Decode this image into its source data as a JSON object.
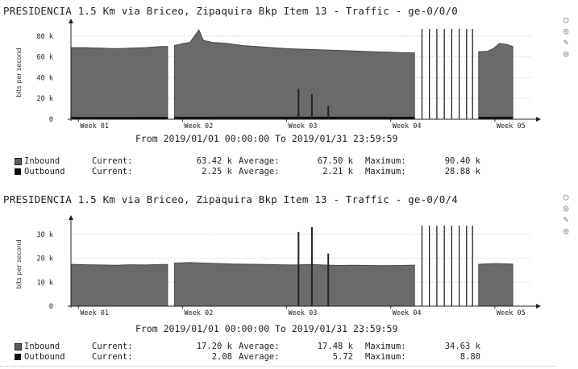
{
  "chart_data": [
    {
      "type": "area",
      "title": "PRESIDENCIA 1.5 Km via Briceo, Zipaquira Bkp Item 13 - Traffic - ge-0/0/0",
      "ylabel": "bits per second",
      "ylim": [
        0,
        90000
      ],
      "yticks": [
        {
          "v": 0,
          "label": "0"
        },
        {
          "v": 20000,
          "label": "20 k"
        },
        {
          "v": 40000,
          "label": "40 k"
        },
        {
          "v": 60000,
          "label": "60 k"
        },
        {
          "v": 80000,
          "label": "80 k"
        }
      ],
      "xticks": [
        "Week 01",
        "Week 02",
        "Week 03",
        "Week 04",
        "Week 05"
      ],
      "xlim": [
        0,
        31
      ],
      "period": "From 2019/01/01 00:00:00 To 2019/01/31 23:59:59",
      "grid": true,
      "series": [
        {
          "name": "Inbound",
          "color": "#6a6a6a",
          "points": [
            [
              0,
              69000
            ],
            [
              1.0,
              69000
            ],
            [
              2.0,
              68500
            ],
            [
              3.0,
              68000
            ],
            [
              4.0,
              68500
            ],
            [
              5.0,
              69000
            ],
            [
              6.0,
              70000
            ],
            [
              6.5,
              70000
            ],
            [
              6.51,
              null
            ],
            [
              6.95,
              null
            ],
            [
              6.96,
              71000
            ],
            [
              7.6,
              73000
            ],
            [
              8.0,
              74000
            ],
            [
              8.3,
              80000
            ],
            [
              8.6,
              86000
            ],
            [
              8.9,
              76000
            ],
            [
              9.5,
              74000
            ],
            [
              10.5,
              73000
            ],
            [
              11.5,
              71000
            ],
            [
              12.5,
              70000
            ],
            [
              13.5,
              69000
            ],
            [
              14.5,
              68000
            ],
            [
              15.5,
              67500
            ],
            [
              16.5,
              67000
            ],
            [
              17.5,
              66500
            ],
            [
              18.5,
              66000
            ],
            [
              19.5,
              65500
            ],
            [
              20.5,
              65000
            ],
            [
              21.5,
              64500
            ],
            [
              22.5,
              64000
            ],
            [
              23.1,
              64000
            ],
            [
              23.11,
              null
            ],
            [
              27.4,
              null
            ],
            [
              27.41,
              65000
            ],
            [
              28.0,
              65500
            ],
            [
              28.4,
              68000
            ],
            [
              28.8,
              73000
            ],
            [
              29.3,
              72000
            ],
            [
              29.7,
              70000
            ]
          ],
          "current": "63.42 k",
          "average": "67.50 k",
          "maximum": "90.40 k"
        },
        {
          "name": "Outbound",
          "color": "#111111",
          "points": [
            [
              0,
              2000
            ],
            [
              6.5,
              2100
            ],
            [
              6.51,
              null
            ],
            [
              6.95,
              null
            ],
            [
              6.96,
              2200
            ],
            [
              16.5,
              2300
            ],
            [
              23.1,
              2200
            ],
            [
              23.11,
              null
            ],
            [
              27.4,
              null
            ],
            [
              27.41,
              2200
            ],
            [
              29.7,
              2250
            ]
          ],
          "current": "2.25 k",
          "average": "2.21 k",
          "maximum": "28.88 k"
        }
      ],
      "spikes": [
        {
          "x": 15.3,
          "v": 29000
        },
        {
          "x": 16.2,
          "v": 24000
        },
        {
          "x": 17.3,
          "v": 13000
        }
      ],
      "gap_lines": [
        23.6,
        24.1,
        24.6,
        25.1,
        25.6,
        26.1,
        26.6,
        27.0
      ],
      "legend": {
        "current_label": "Current:",
        "average_label": "Average:",
        "maximum_label": "Maximum:"
      }
    },
    {
      "type": "area",
      "title": "PRESIDENCIA 1.5 Km via Briceo, Zipaquira Bkp Item 13 - Traffic - ge-0/0/4",
      "ylabel": "bits per second",
      "ylim": [
        0,
        35000
      ],
      "yticks": [
        {
          "v": 0,
          "label": "0"
        },
        {
          "v": 10000,
          "label": "10 k"
        },
        {
          "v": 20000,
          "label": "20 k"
        },
        {
          "v": 30000,
          "label": "30 k"
        }
      ],
      "xticks": [
        "Week 01",
        "Week 02",
        "Week 03",
        "Week 04",
        "Week 05"
      ],
      "xlim": [
        0,
        31
      ],
      "period": "From 2019/01/01 00:00:00 To 2019/01/31 23:59:59",
      "grid": true,
      "series": [
        {
          "name": "Inbound",
          "color": "#6a6a6a",
          "points": [
            [
              0,
              17500
            ],
            [
              1.0,
              17300
            ],
            [
              2.0,
              17200
            ],
            [
              3.0,
              17100
            ],
            [
              4.0,
              17300
            ],
            [
              5.0,
              17200
            ],
            [
              6.0,
              17400
            ],
            [
              6.5,
              17400
            ],
            [
              6.51,
              null
            ],
            [
              6.95,
              null
            ],
            [
              6.96,
              18000
            ],
            [
              8.0,
              18200
            ],
            [
              9.0,
              18000
            ],
            [
              10.0,
              17800
            ],
            [
              11.0,
              17600
            ],
            [
              12.0,
              17500
            ],
            [
              13.0,
              17400
            ],
            [
              14.0,
              17300
            ],
            [
              15.0,
              17200
            ],
            [
              16.0,
              17400
            ],
            [
              17.0,
              17200
            ],
            [
              18.0,
              17000
            ],
            [
              19.0,
              17100
            ],
            [
              20.0,
              17000
            ],
            [
              21.0,
              16900
            ],
            [
              22.0,
              17000
            ],
            [
              23.1,
              17100
            ],
            [
              23.11,
              null
            ],
            [
              27.4,
              null
            ],
            [
              27.41,
              17500
            ],
            [
              28.5,
              17800
            ],
            [
              29.7,
              17600
            ]
          ],
          "current": "17.20 k",
          "average": "17.48 k",
          "maximum": "34.63 k"
        },
        {
          "name": "Outbound",
          "color": "#111111",
          "points": [
            [
              0,
              0
            ],
            [
              29.7,
              0
            ]
          ],
          "current": "2.08",
          "average": "5.72",
          "maximum": "8.80"
        }
      ],
      "spikes": [
        {
          "x": 15.3,
          "v": 31000
        },
        {
          "x": 16.2,
          "v": 33000
        },
        {
          "x": 17.3,
          "v": 22000
        }
      ],
      "gap_lines": [
        23.6,
        24.1,
        24.6,
        25.1,
        25.6,
        26.1,
        26.6,
        27.0
      ],
      "legend": {
        "current_label": "Current:",
        "average_label": "Average:",
        "maximum_label": "Maximum:"
      }
    }
  ]
}
